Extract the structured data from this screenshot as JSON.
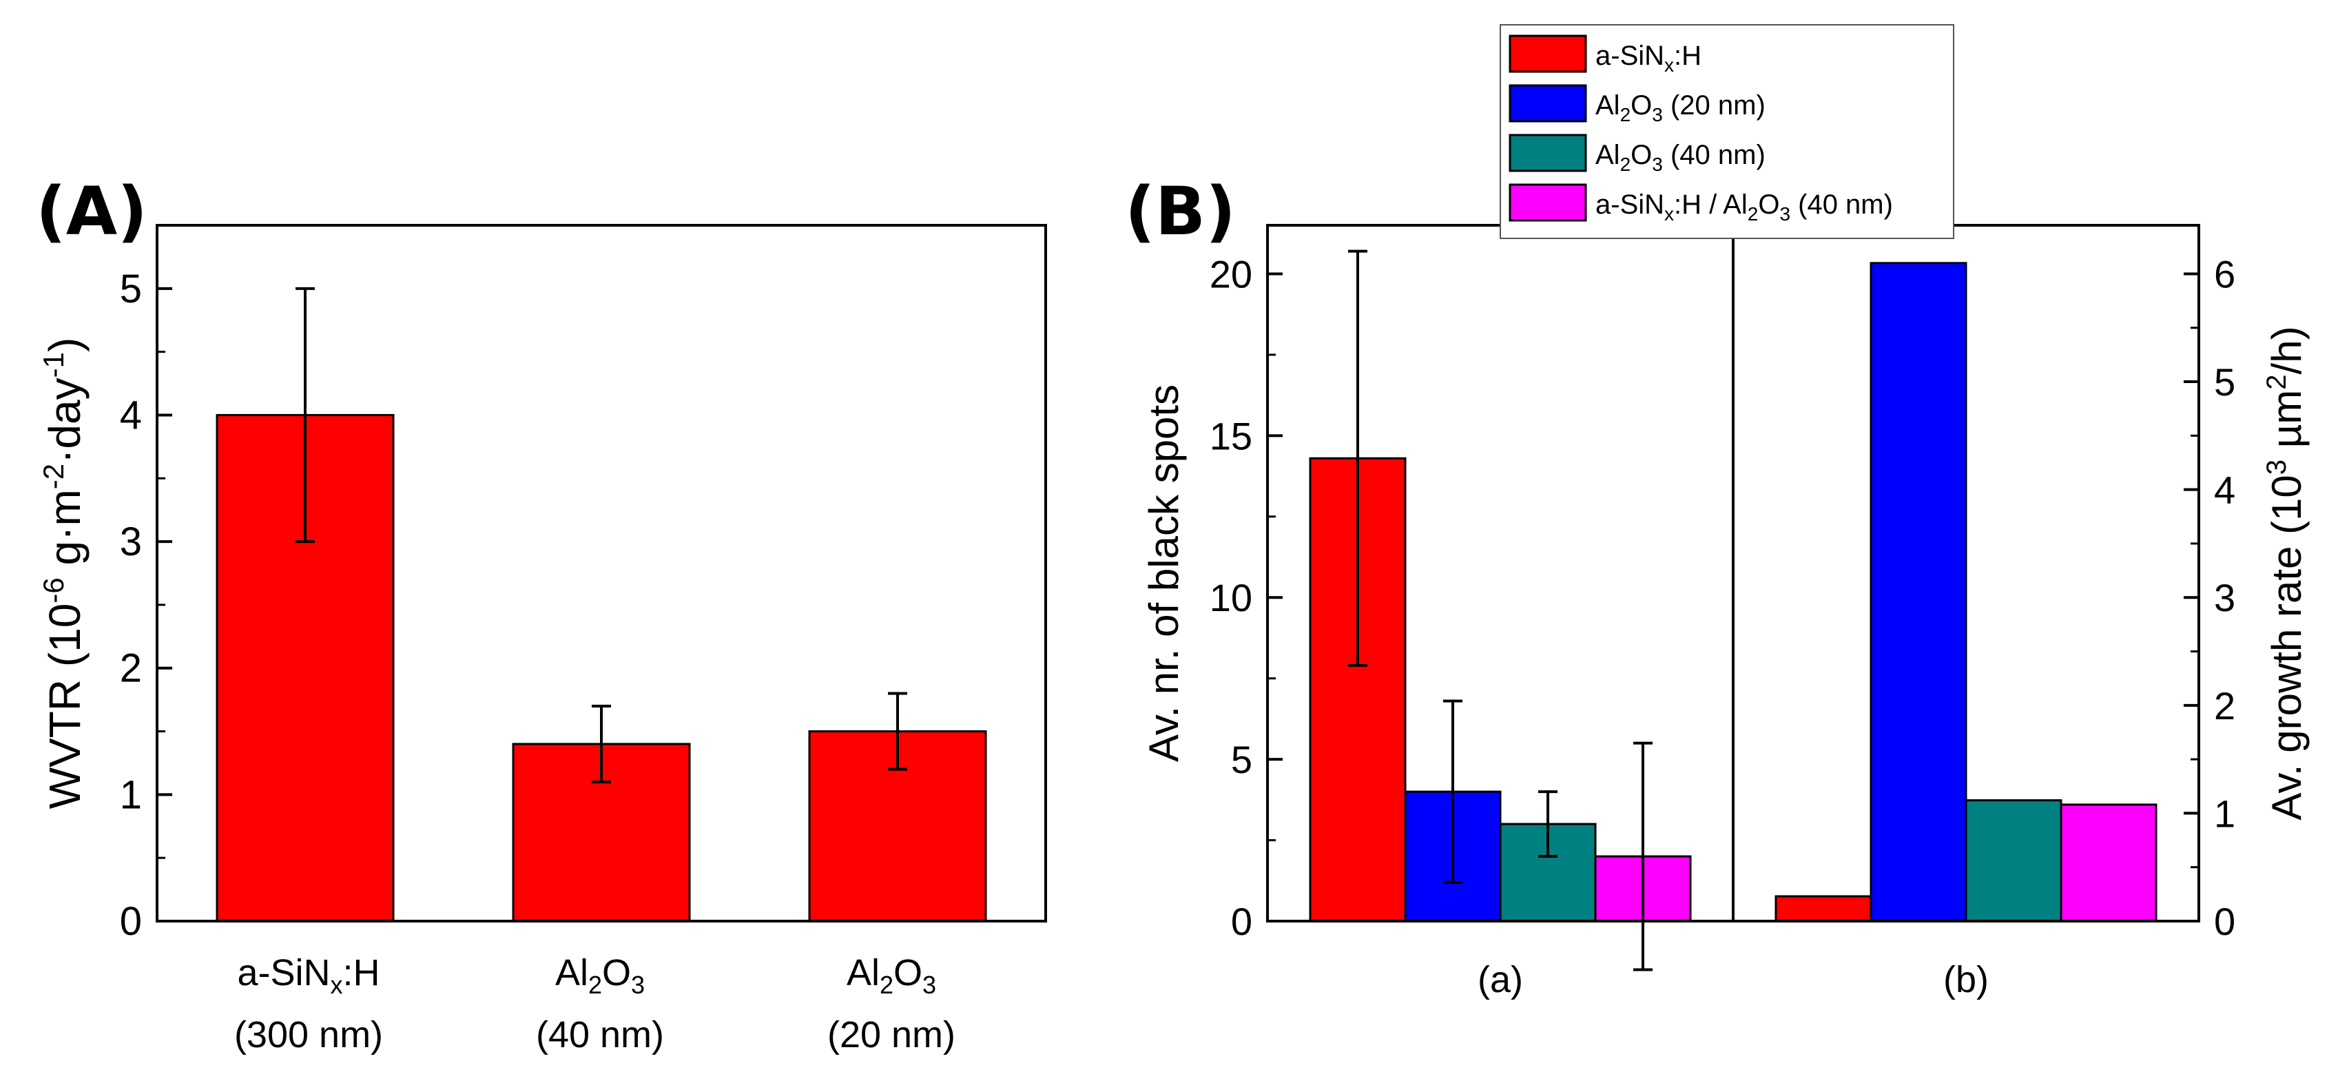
{
  "chart_data": [
    {
      "panel": "(A)",
      "type": "bar",
      "title": "",
      "ylabel": "WVTR (10^-6 g·m^-2·day^-1)",
      "ylim": [
        0,
        5.5
      ],
      "yticks": [
        0,
        1,
        2,
        3,
        4,
        5
      ],
      "categories": [
        {
          "line1": "a-SiNx:H",
          "line2": "(300 nm)"
        },
        {
          "line1": "Al2O3",
          "line2": "(40 nm)"
        },
        {
          "line1": "Al2O3",
          "line2": "(20 nm)"
        }
      ],
      "series": [
        {
          "name": "WVTR",
          "color": "#ff0000",
          "values": [
            4.0,
            1.4,
            1.5
          ],
          "errors": [
            1.0,
            0.3,
            0.3
          ]
        }
      ]
    },
    {
      "panel": "(B)",
      "type": "bar",
      "title": "",
      "ylabel_left": "Av. nr. of black spots",
      "ylabel_right": "Av. growth rate (10^3 µm^2/h)",
      "ylim_left": [
        0,
        21.5
      ],
      "yticks_left": [
        0,
        5,
        10,
        15,
        20
      ],
      "ylim_right": [
        0,
        6.45
      ],
      "yticks_right": [
        0,
        1,
        2,
        3,
        4,
        5,
        6
      ],
      "groups": [
        "(a)",
        "(b)"
      ],
      "legend_position": "top",
      "legend": [
        {
          "label": "a-SiNx:H",
          "color": "#ff0000"
        },
        {
          "label": "Al2O3 (20 nm)",
          "color": "#0000ff"
        },
        {
          "label": "Al2O3 (40 nm)",
          "color": "#008080"
        },
        {
          "label": "a-SiNx:H / Al2O3 (40 nm)",
          "color": "#ff00ff"
        }
      ],
      "series": [
        {
          "name": "a-SiNx:H",
          "color": "#ff0000",
          "black_spots": 14.3,
          "black_spots_error": 6.4,
          "growth_rate": 0.23
        },
        {
          "name": "Al2O3 (20 nm)",
          "color": "#0000ff",
          "black_spots": 4.0,
          "black_spots_error": 2.8,
          "growth_rate": 6.1
        },
        {
          "name": "Al2O3 (40 nm)",
          "color": "#008080",
          "black_spots": 3.0,
          "black_spots_error": 1.0,
          "growth_rate": 1.12
        },
        {
          "name": "a-SiNx:H / Al2O3 (40 nm)",
          "color": "#ff00ff",
          "black_spots": 2.0,
          "black_spots_error": 3.5,
          "growth_rate": 1.08
        }
      ]
    }
  ]
}
